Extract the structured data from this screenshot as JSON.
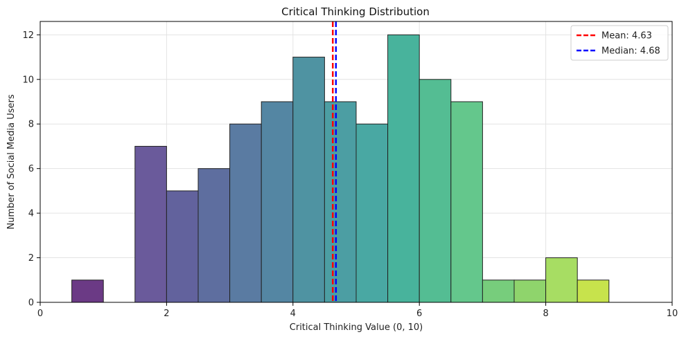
{
  "chart_data": {
    "type": "bar",
    "title": "Critical Thinking Distribution",
    "xlabel": "Critical Thinking Value (0, 10)",
    "ylabel": "Number of Social Media Users",
    "xlim": [
      0,
      10
    ],
    "ylim": [
      0,
      12.6
    ],
    "xticks": [
      0,
      2,
      4,
      6,
      8,
      10
    ],
    "yticks": [
      0,
      2,
      4,
      6,
      8,
      10,
      12
    ],
    "grid": true,
    "bins": [
      {
        "start": 0.5,
        "end": 1.0,
        "count": 1,
        "color": "#6b3a85"
      },
      {
        "start": 1.0,
        "end": 1.5,
        "count": 0,
        "color": "#68438e"
      },
      {
        "start": 1.5,
        "end": 2.0,
        "count": 7,
        "color": "#6a5a9b"
      },
      {
        "start": 2.0,
        "end": 2.5,
        "count": 5,
        "color": "#62629d"
      },
      {
        "start": 2.5,
        "end": 3.0,
        "count": 6,
        "color": "#5e6e9f"
      },
      {
        "start": 3.0,
        "end": 3.5,
        "count": 8,
        "color": "#5a7ba2"
      },
      {
        "start": 3.5,
        "end": 4.0,
        "count": 9,
        "color": "#5486a3"
      },
      {
        "start": 4.0,
        "end": 4.5,
        "count": 11,
        "color": "#4f93a2"
      },
      {
        "start": 4.5,
        "end": 5.0,
        "count": 9,
        "color": "#4c9ea3"
      },
      {
        "start": 5.0,
        "end": 5.5,
        "count": 8,
        "color": "#49a8a3"
      },
      {
        "start": 5.5,
        "end": 6.0,
        "count": 12,
        "color": "#48b39c"
      },
      {
        "start": 6.0,
        "end": 6.5,
        "count": 10,
        "color": "#54bd93"
      },
      {
        "start": 6.5,
        "end": 7.0,
        "count": 9,
        "color": "#64c78c"
      },
      {
        "start": 7.0,
        "end": 7.5,
        "count": 1,
        "color": "#77cd7c"
      },
      {
        "start": 7.5,
        "end": 8.0,
        "count": 1,
        "color": "#8fd46c"
      },
      {
        "start": 8.0,
        "end": 8.5,
        "count": 2,
        "color": "#a7dd63"
      },
      {
        "start": 8.5,
        "end": 9.0,
        "count": 1,
        "color": "#c7e34c"
      }
    ],
    "reference_lines": [
      {
        "label": "Mean: 4.63",
        "x": 4.63,
        "color": "#ff0000",
        "style": "dashed"
      },
      {
        "label": "Median: 4.68",
        "x": 4.68,
        "color": "#0000ff",
        "style": "dashed"
      }
    ],
    "legend_position": "top-right"
  }
}
